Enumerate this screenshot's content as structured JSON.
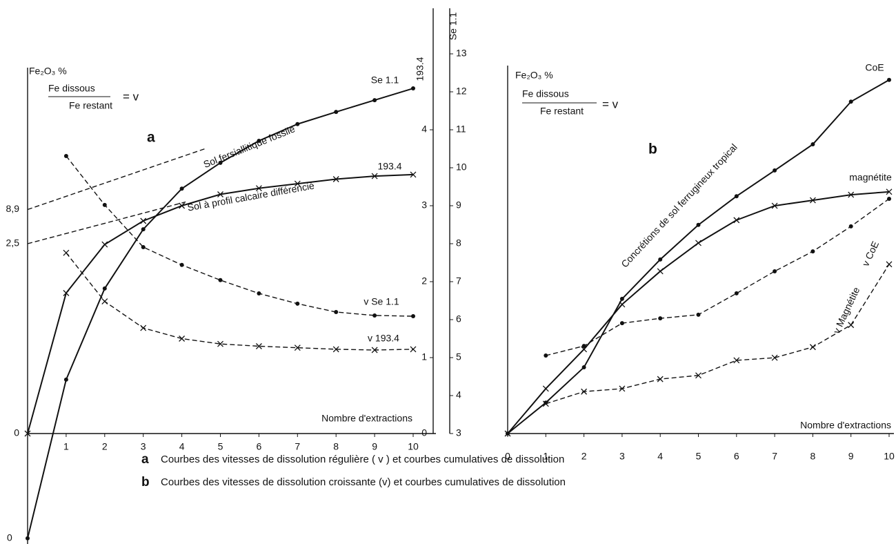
{
  "chart_data": [
    {
      "type": "line",
      "panel": "a",
      "ylabel": "Fe₂O₃ %",
      "ratio": {
        "numerator": "Fe  dissous",
        "denominator": "Fe  restant",
        "equals": "=  v"
      },
      "xlabel": "Nombre d'extractions",
      "y_axis_title": "193.4",
      "y2_axis_title": "Se 1.1",
      "origin_label": "0",
      "x": [
        0,
        1,
        2,
        3,
        4,
        5,
        6,
        7,
        8,
        9,
        10
      ],
      "xlim": [
        0,
        10
      ],
      "xticks": [
        1,
        2,
        3,
        4,
        5,
        6,
        7,
        8,
        9,
        10
      ],
      "ylim": [
        0,
        5.6
      ],
      "yticks": [
        0,
        1,
        2,
        3,
        4
      ],
      "y2lim": [
        3,
        14.2
      ],
      "y2ticks": [
        3,
        4,
        5,
        6,
        7,
        8,
        9,
        10,
        11,
        12,
        13
      ],
      "intercepts": [
        {
          "value": 8.9,
          "label": "8,9",
          "axis": "y2"
        },
        {
          "value": 2.5,
          "label": "2,5",
          "axis": "y"
        },
        {
          "value": 0,
          "label": "0",
          "axis": "y"
        }
      ],
      "series": [
        {
          "name": "Se 1.1",
          "axis": "y2",
          "color": "#111",
          "marker": "dot",
          "dashed": false,
          "values": [
            0.24,
            4.42,
            6.82,
            8.38,
            9.45,
            10.13,
            10.71,
            11.15,
            11.47,
            11.78,
            12.09
          ]
        },
        {
          "name": "193.4",
          "axis": "y",
          "color": "#111",
          "marker": "cross",
          "dashed": false,
          "values": [
            0,
            1.85,
            2.49,
            2.8,
            3.0,
            3.15,
            3.23,
            3.29,
            3.35,
            3.39,
            3.41
          ]
        },
        {
          "name": "v  Se 1.1",
          "axis": "y2",
          "color": "#111",
          "marker": "dot",
          "dashed": true,
          "values": [
            null,
            10.31,
            9.02,
            7.91,
            7.44,
            7.04,
            6.69,
            6.42,
            6.2,
            6.11,
            6.09
          ]
        },
        {
          "name": "v  193.4",
          "axis": "y",
          "color": "#111",
          "marker": "cross",
          "dashed": true,
          "values": [
            null,
            2.38,
            1.74,
            1.39,
            1.25,
            1.18,
            1.15,
            1.13,
            1.11,
            1.1,
            1.11
          ]
        },
        {
          "axis": "y2",
          "color": "#111",
          "dashed": true,
          "x": [
            0,
            4.6
          ],
          "values": [
            8.9,
            10.5
          ]
        },
        {
          "axis": "y",
          "color": "#111",
          "dashed": true,
          "x": [
            0,
            4.1
          ],
          "values": [
            2.5,
            3.05
          ]
        }
      ],
      "annotations": [
        "Sol  fersiallitique fossile",
        "Sol à profil calcaire différencié"
      ]
    },
    {
      "type": "line",
      "panel": "b",
      "ylabel": "Fe₂O₃ %",
      "ratio": {
        "numerator": "Fe  dissous",
        "denominator": "Fe  restant",
        "equals": "=  v"
      },
      "xlabel": "Nombre d'extractions",
      "x": [
        0,
        1,
        2,
        3,
        4,
        5,
        6,
        7,
        8,
        9,
        10
      ],
      "xlim": [
        0,
        10
      ],
      "xticks": [
        0,
        1,
        2,
        3,
        4,
        5,
        6,
        7,
        8,
        9,
        10
      ],
      "ylim": [
        0,
        10
      ],
      "series": [
        {
          "name": "CoE",
          "axis": "y",
          "color": "#111",
          "marker": "dot",
          "dashed": false,
          "values": [
            0,
            0.84,
            1.8,
            3.66,
            4.73,
            5.67,
            6.45,
            7.15,
            7.86,
            9.02,
            9.61
          ]
        },
        {
          "name": "magnétite",
          "axis": "y",
          "color": "#111",
          "marker": "cross",
          "dashed": false,
          "values": [
            0,
            1.22,
            2.29,
            3.51,
            4.41,
            5.18,
            5.8,
            6.19,
            6.34,
            6.49,
            6.57
          ]
        },
        {
          "name": "v  CoE",
          "axis": "y",
          "color": "#111",
          "marker": "dot",
          "dashed": true,
          "values": [
            null,
            2.12,
            2.38,
            3.0,
            3.13,
            3.23,
            3.81,
            4.41,
            4.95,
            5.63,
            6.38
          ]
        },
        {
          "name": "v  Magnétite",
          "axis": "y",
          "color": "#111",
          "marker": "cross",
          "dashed": true,
          "values": [
            null,
            0.81,
            1.14,
            1.22,
            1.48,
            1.58,
            1.99,
            2.06,
            2.35,
            2.95,
            4.6
          ]
        }
      ],
      "annotations": [
        "Concrétions  de  sol  ferrugineux  tropical"
      ]
    }
  ],
  "captions": [
    {
      "letter": "a",
      "text": "Courbes des vitesses de dissolution régulière ( v )  et courbes cumulatives de dissolution"
    },
    {
      "letter": "b",
      "text": "Courbes des vitesses de dissolution croissante (v)  et courbes cumulatives de dissolution"
    }
  ]
}
